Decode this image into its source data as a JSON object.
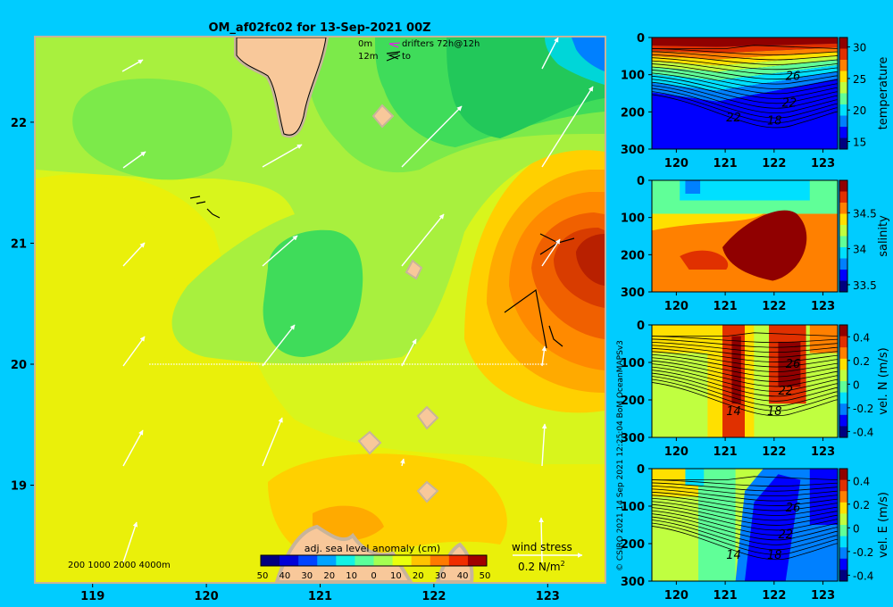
{
  "title": "OM_af02fc02 for 13-Sep-2021 00Z",
  "credit": "© CSIRO 2021   14 Sep 2021 12:25:04 BoM OceanMAPSv3",
  "colors": {
    "background": "#00ccff",
    "land": "#f8c89a",
    "land_border": "#c8b49a",
    "arrow": "#ffffff",
    "section_line": "#ffffff"
  },
  "map": {
    "x_ticks": [
      "119",
      "120",
      "121",
      "122",
      "123"
    ],
    "x_tick_values": [
      119,
      120,
      121,
      122,
      123
    ],
    "y_ticks": [
      "22",
      "21",
      "20",
      "19"
    ],
    "y_tick_values": [
      22,
      21,
      20,
      19
    ],
    "xlim": [
      118.5,
      123.5
    ],
    "ylim": [
      18.2,
      22.7
    ],
    "section_line": {
      "lon": [
        119.5,
        123.0
      ],
      "lat": [
        20.0,
        20.0
      ]
    },
    "legend_drifters": {
      "depth_0": "0m",
      "depth_12": "12m",
      "label": "drifters 72h@12h",
      "to": "to"
    },
    "bathymetry_legend": "200  1000  2000  4000m",
    "colorbar": {
      "label": "adj. sea level anomaly (cm)",
      "ticks": [
        "50",
        "40",
        "30",
        "20",
        "10",
        "0",
        "10",
        "20",
        "30",
        "40",
        "50"
      ],
      "colors": [
        "#00007f",
        "#0000d8",
        "#0044ff",
        "#00a4ff",
        "#12f2e4",
        "#5cff9a",
        "#a4ff52",
        "#eaff0c",
        "#ffc400",
        "#ff7a00",
        "#f02c00",
        "#a00000"
      ]
    },
    "wind_legend": {
      "label": "wind stress",
      "value": "0.2 N/m",
      "sup": "2"
    }
  },
  "sections": [
    {
      "name": "temperature",
      "x_ticks": [
        "120",
        "121",
        "122",
        "123"
      ],
      "y_ticks": [
        "0",
        "100",
        "200",
        "300"
      ],
      "cb_ticks": [
        "30",
        "25",
        "20",
        "15"
      ],
      "cb_values": [
        30,
        25,
        20,
        15
      ],
      "cb_range": [
        13.8,
        31.5
      ],
      "contour_labels": [
        "26",
        "22",
        "18",
        "22"
      ],
      "colors": [
        "#00007f",
        "#0000ff",
        "#0080ff",
        "#00e0ff",
        "#60ff98",
        "#c0ff40",
        "#ffe000",
        "#ff8000",
        "#e03000",
        "#900000"
      ]
    },
    {
      "name": "salinity",
      "x_ticks": [
        "120",
        "121",
        "122",
        "123"
      ],
      "y_ticks": [
        "0",
        "100",
        "200",
        "300"
      ],
      "cb_ticks": [
        "34.5",
        "34",
        "33.5"
      ],
      "cb_values": [
        34.5,
        34.0,
        33.5
      ],
      "cb_range": [
        33.4,
        34.95
      ],
      "contour_labels": [],
      "colors": [
        "#00007f",
        "#0000ff",
        "#0080ff",
        "#00e0ff",
        "#60ff98",
        "#c0ff40",
        "#ffe000",
        "#ff8000",
        "#e03000",
        "#900000"
      ]
    },
    {
      "name": "vel. N (m/s)",
      "x_ticks": [
        "120",
        "121",
        "122",
        "123"
      ],
      "y_ticks": [
        "0",
        "100",
        "200",
        "300"
      ],
      "cb_ticks": [
        "0.4",
        "0.2",
        "0",
        "-0.2",
        "-0.4"
      ],
      "cb_values": [
        0.4,
        0.2,
        0,
        -0.2,
        -0.4
      ],
      "cb_range": [
        -0.45,
        0.5
      ],
      "contour_labels": [
        "26",
        "22",
        "14",
        "18"
      ],
      "colors": [
        "#00007f",
        "#0000ff",
        "#0080ff",
        "#00e0ff",
        "#60ff98",
        "#c0ff40",
        "#ffe000",
        "#ff8000",
        "#e03000",
        "#900000"
      ]
    },
    {
      "name": "vel. E (m/s)",
      "x_ticks": [
        "120",
        "121",
        "122",
        "123"
      ],
      "y_ticks": [
        "0",
        "100",
        "200",
        "300"
      ],
      "cb_ticks": [
        "0.4",
        "0.2",
        "0",
        "-0.2",
        "-0.4"
      ],
      "cb_values": [
        0.4,
        0.2,
        0,
        -0.2,
        -0.4
      ],
      "cb_range": [
        -0.45,
        0.5
      ],
      "contour_labels": [
        "26",
        "22",
        "14",
        "18"
      ],
      "colors": [
        "#00007f",
        "#0000ff",
        "#0080ff",
        "#00e0ff",
        "#60ff98",
        "#c0ff40",
        "#ffe000",
        "#ff8000",
        "#e03000",
        "#900000"
      ]
    }
  ],
  "chart_data": [
    {
      "type": "heatmap",
      "title": "OM_af02fc02 for 13-Sep-2021 00Z",
      "xlabel": "",
      "ylabel": "",
      "xlim": [
        118.5,
        123.5
      ],
      "ylim": [
        18.2,
        22.7
      ],
      "colorbar_label": "adj. sea level anomaly (cm)",
      "colorbar_range": [
        -50,
        50
      ],
      "features": [
        {
          "lon": 123.3,
          "lat": 21.0,
          "ssla": 45
        },
        {
          "lon": 122.9,
          "lat": 21.0,
          "ssla": 30
        },
        {
          "lon": 120.8,
          "lat": 20.6,
          "ssla": -10
        },
        {
          "lon": 123.3,
          "lat": 22.5,
          "ssla": -35
        },
        {
          "lon": 121.5,
          "lat": 18.6,
          "ssla": 20
        },
        {
          "lon": 119.5,
          "lat": 20.5,
          "ssla": 5
        }
      ],
      "wind_legend": "0.2 N/m2",
      "section_line": {
        "lon": [
          119.5,
          123.0
        ],
        "lat": [
          20.0,
          20.0
        ]
      }
    },
    {
      "type": "heatmap",
      "title": "",
      "ylabel": "",
      "colorbar_label": "temperature",
      "x": [
        120,
        121,
        122,
        123
      ],
      "ylim": [
        300,
        0
      ],
      "colorbar_range": [
        13.8,
        31.5
      ],
      "contours": [
        "26",
        "22",
        "18",
        "22"
      ]
    },
    {
      "type": "heatmap",
      "title": "",
      "ylabel": "",
      "colorbar_label": "salinity",
      "x": [
        120,
        121,
        122,
        123
      ],
      "ylim": [
        300,
        0
      ],
      "colorbar_range": [
        33.4,
        34.95
      ]
    },
    {
      "type": "heatmap",
      "title": "",
      "ylabel": "",
      "colorbar_label": "vel. N (m/s)",
      "x": [
        120,
        121,
        122,
        123
      ],
      "ylim": [
        300,
        0
      ],
      "colorbar_range": [
        -0.45,
        0.5
      ]
    },
    {
      "type": "heatmap",
      "title": "",
      "ylabel": "",
      "colorbar_label": "vel. E (m/s)",
      "x": [
        120,
        121,
        122,
        123
      ],
      "ylim": [
        300,
        0
      ],
      "colorbar_range": [
        -0.45,
        0.5
      ]
    }
  ]
}
